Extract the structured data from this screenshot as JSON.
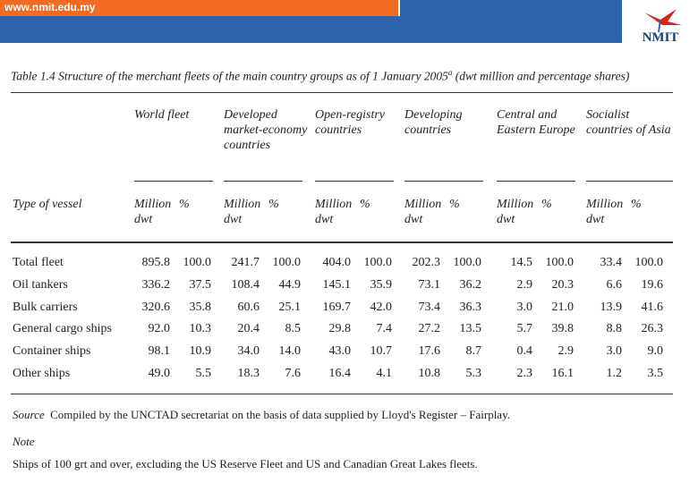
{
  "header": {
    "url": "www.nmit.edu.my",
    "logo": "NMIT"
  },
  "table": {
    "caption": "Table 1.4 Structure of the merchant fleets of the main country groups as of 1 January 2005",
    "caption_mark": "a",
    "caption_tail": "(dwt million and percentage shares)",
    "groups": [
      "World fleet",
      "Developed market-economy countries",
      "Open-registry countries",
      "Developing countries",
      "Central and Eastern Europe",
      "Socialist countries of Asia"
    ],
    "stub_header": "Type of vessel",
    "subheaders": [
      "Million dwt",
      "%"
    ],
    "rows": [
      [
        "Total fleet",
        "895.8",
        "100.0",
        "241.7",
        "100.0",
        "404.0",
        "100.0",
        "202.3",
        "100.0",
        "14.5",
        "100.0",
        "33.4",
        "100.0"
      ],
      [
        "Oil tankers",
        "336.2",
        "37.5",
        "108.4",
        "44.9",
        "145.1",
        "35.9",
        "73.1",
        "36.2",
        "2.9",
        "20.3",
        "6.6",
        "19.6"
      ],
      [
        "Bulk carriers",
        "320.6",
        "35.8",
        "60.6",
        "25.1",
        "169.7",
        "42.0",
        "73.4",
        "36.3",
        "3.0",
        "21.0",
        "13.9",
        "41.6"
      ],
      [
        "General cargo ships",
        "92.0",
        "10.3",
        "20.4",
        "8.5",
        "29.8",
        "7.4",
        "27.2",
        "13.5",
        "5.7",
        "39.8",
        "8.8",
        "26.3"
      ],
      [
        "Container ships",
        "98.1",
        "10.9",
        "34.0",
        "14.0",
        "43.0",
        "10.7",
        "17.6",
        "8.7",
        "0.4",
        "2.9",
        "3.0",
        "9.0"
      ],
      [
        "Other ships",
        "49.0",
        "5.5",
        "18.3",
        "7.6",
        "16.4",
        "4.1",
        "10.8",
        "5.3",
        "2.3",
        "16.1",
        "1.2",
        "3.5"
      ]
    ],
    "source_label": "Source",
    "source": "Compiled by the UNCTAD secretariat on the basis of data supplied by Lloyd's Register – Fairplay.",
    "note_label": "Note",
    "note": "Ships of 100 grt and over, excluding the US Reserve Fleet and US and Canadian Great Lakes fleets."
  }
}
